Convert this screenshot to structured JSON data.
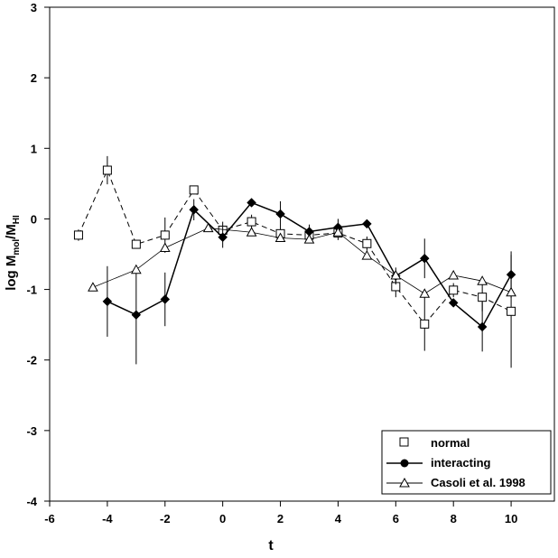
{
  "chart_data": {
    "type": "scatter",
    "xlabel": "t",
    "ylabel": {
      "main": "log M",
      "sub1": "mol",
      "mid": "/M",
      "sub2": "HI"
    },
    "xlim": [
      -6,
      11.5
    ],
    "ylim": [
      -4,
      3
    ],
    "xticks": [
      -6,
      -4,
      -2,
      0,
      2,
      4,
      6,
      8,
      10
    ],
    "yticks": [
      3,
      2,
      1,
      0,
      -1,
      -2,
      -3,
      -4
    ],
    "grid": false,
    "legend_position": "bottom-right",
    "series": [
      {
        "name": "normal",
        "marker": "square-open",
        "line": "dashed",
        "points": [
          {
            "x": -5,
            "y": -0.23,
            "err": 0.08
          },
          {
            "x": -4,
            "y": 0.69,
            "err": 0.2
          },
          {
            "x": -3,
            "y": -0.36,
            "err": 0.05
          },
          {
            "x": -2,
            "y": -0.23,
            "err": 0.25
          },
          {
            "x": -1,
            "y": 0.41,
            "err": 0.05
          },
          {
            "x": 0,
            "y": -0.16,
            "err": 0.12
          },
          {
            "x": 1,
            "y": -0.04,
            "err": 0.1
          },
          {
            "x": 2,
            "y": -0.21,
            "err": 0.1
          },
          {
            "x": 3,
            "y": -0.23,
            "err": 0.1
          },
          {
            "x": 4,
            "y": -0.2,
            "err": 0.1
          },
          {
            "x": 5,
            "y": -0.35,
            "err": 0.1
          },
          {
            "x": 6,
            "y": -0.96,
            "err": 0.15
          },
          {
            "x": 7,
            "y": -1.49,
            "err": 0.38
          },
          {
            "x": 8,
            "y": -1.01,
            "err": 0.1
          },
          {
            "x": 9,
            "y": -1.11,
            "err": 0.2
          },
          {
            "x": 10,
            "y": -1.31,
            "err": 0.8
          }
        ]
      },
      {
        "name": "interacting",
        "marker": "diamond-filled",
        "line": "solid",
        "points": [
          {
            "x": -4,
            "y": -1.17,
            "err": 0.5
          },
          {
            "x": -3,
            "y": -1.36,
            "err": 0.7
          },
          {
            "x": -2,
            "y": -1.14,
            "err": 0.38
          },
          {
            "x": -1,
            "y": 0.13,
            "err": 0.15
          },
          {
            "x": 0,
            "y": -0.26,
            "err": 0.15
          },
          {
            "x": 1,
            "y": 0.23,
            "err": 0.05
          },
          {
            "x": 2,
            "y": 0.07,
            "err": 0.18
          },
          {
            "x": 3,
            "y": -0.18,
            "err": 0.1
          },
          {
            "x": 4,
            "y": -0.12,
            "err": 0.12
          },
          {
            "x": 5,
            "y": -0.07,
            "err": 0.05
          },
          {
            "x": 6,
            "y": -0.81,
            "err": 0.12
          },
          {
            "x": 7,
            "y": -0.56,
            "err": 0.28
          },
          {
            "x": 8,
            "y": -1.19,
            "err": 0.05
          },
          {
            "x": 9,
            "y": -1.53,
            "err": 0.35
          },
          {
            "x": 10,
            "y": -0.79,
            "err": 0.33
          }
        ]
      },
      {
        "name": "Casoli et al. 1998",
        "marker": "triangle-open",
        "line": "thin",
        "points": [
          {
            "x": -4.5,
            "y": -0.97
          },
          {
            "x": -3,
            "y": -0.72
          },
          {
            "x": -2,
            "y": -0.41
          },
          {
            "x": -0.5,
            "y": -0.13
          },
          {
            "x": 1,
            "y": -0.19
          },
          {
            "x": 2,
            "y": -0.27
          },
          {
            "x": 3,
            "y": -0.29
          },
          {
            "x": 4,
            "y": -0.19
          },
          {
            "x": 5,
            "y": -0.52
          },
          {
            "x": 6,
            "y": -0.8
          },
          {
            "x": 7,
            "y": -1.06
          },
          {
            "x": 8,
            "y": -0.8
          },
          {
            "x": 9,
            "y": -0.88
          },
          {
            "x": 10,
            "y": -1.04
          }
        ]
      }
    ]
  }
}
